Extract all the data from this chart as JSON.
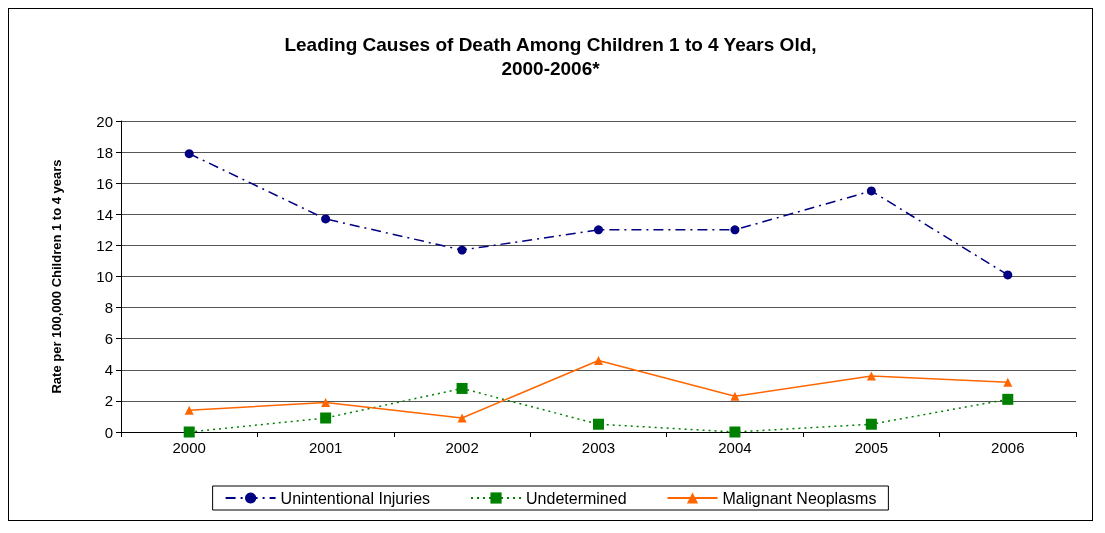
{
  "chart_data": {
    "type": "line",
    "title": "Leading Causes of Death Among Children 1 to 4 Years Old,\n2000-2006*",
    "ylabel": "Rate per 100,000 Children 1 to 4 years",
    "categories": [
      "2000",
      "2001",
      "2002",
      "2003",
      "2004",
      "2005",
      "2006"
    ],
    "series": [
      {
        "name": "Unintentional Injuries",
        "color": "#000080",
        "marker": "circle",
        "line_style": "dashdot",
        "values": [
          17.9,
          13.7,
          11.7,
          13.0,
          13.0,
          15.5,
          10.1
        ]
      },
      {
        "name": "Undetermined",
        "color": "#008000",
        "marker": "square",
        "line_style": "dotted",
        "values": [
          0,
          0.9,
          2.8,
          0.5,
          0,
          0.5,
          2.1
        ]
      },
      {
        "name": "Malignant Neoplasms",
        "color": "#ff6600",
        "marker": "triangle",
        "line_style": "solid",
        "values": [
          1.4,
          1.9,
          0.9,
          4.6,
          2.3,
          3.6,
          3.2
        ]
      }
    ],
    "ylim": [
      0,
      20
    ],
    "yticks": [
      0,
      2,
      4,
      6,
      8,
      10,
      12,
      14,
      16,
      18,
      20
    ],
    "grid": "y",
    "legend": "bottom"
  }
}
